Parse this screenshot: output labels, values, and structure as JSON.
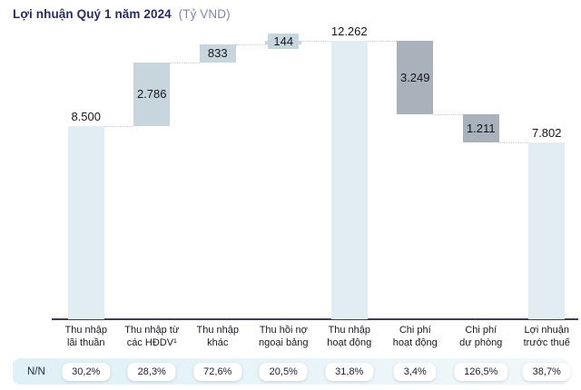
{
  "title": {
    "main": "Lợi nhuận Quý 1 năm 2024",
    "unit": "(Tỷ VND)"
  },
  "band": {
    "label": "N/N"
  },
  "colors": {
    "income_bar": "#e2edf3",
    "component_bar": "#c7d5dc",
    "expense_bar": "#a9b2ba",
    "axis_line": "#3b3e54",
    "title_navy": "#292c5e",
    "unit_muted": "#7e86a8",
    "band_bg_left": "#dff0f6",
    "band_bg_right": "#f2f8fb",
    "connector": "#c9cdd5",
    "text_dark": "#16171d"
  },
  "chart_data": {
    "type": "bar",
    "subtype": "waterfall",
    "title": "Lợi nhuận Quý 1 năm 2024",
    "unit": "Tỷ VND",
    "categories": [
      "Thu nhập lãi thuần",
      "Thu nhập từ các HĐDV¹",
      "Thu nhập khác",
      "Thu hồi nợ ngoại bảng",
      "Thu nhập hoạt động",
      "Chi phí hoạt động",
      "Chi phí dự phòng",
      "Lợi nhuận trước thuế"
    ],
    "category_lines": [
      "Thu nhập\nlãi thuần",
      "Thu nhập từ\ncác HĐDV¹",
      "Thu nhập\nkhác",
      "Thu hồi nợ\nngoại bảng",
      "Thu nhập\nhoạt động",
      "Chi phí\nhoạt động",
      "Chi phí\ndự phòng",
      "Lợi nhuận\ntrước thuế"
    ],
    "values": [
      8500,
      2786,
      833,
      144,
      12262,
      3249,
      1211,
      7802
    ],
    "value_labels": [
      "8.500",
      "2.786",
      "833",
      "144",
      "12.262",
      "3.249",
      "1.211",
      "7.802"
    ],
    "step_types": [
      "absolute",
      "increase",
      "increase",
      "increase",
      "total",
      "decrease",
      "decrease",
      "total"
    ],
    "bar_roles": [
      "income",
      "component",
      "component",
      "component",
      "income",
      "expense",
      "expense",
      "income"
    ],
    "label_pos": [
      "above",
      "inside",
      "inside",
      "chip",
      "above",
      "inside",
      "inside",
      "above"
    ],
    "growth_row_label": "N/N",
    "yoy_growth": [
      "30,2%",
      "28,3%",
      "72,6%",
      "20,5%",
      "31,8%",
      "3,4%",
      "126,5%",
      "38,7%"
    ],
    "ylim": [
      0,
      12263
    ],
    "grid": false,
    "legend": false
  }
}
